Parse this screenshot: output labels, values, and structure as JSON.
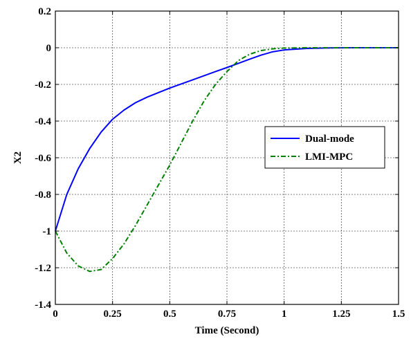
{
  "chart_data": {
    "type": "line",
    "title": "",
    "xlabel": "Time (Second)",
    "ylabel": "X2",
    "xlim": [
      0,
      1.5
    ],
    "ylim": [
      -1.4,
      0.2
    ],
    "xticks": [
      0,
      0.25,
      0.5,
      0.75,
      1,
      1.25,
      1.5
    ],
    "xtick_labels": [
      "0",
      "0.25",
      "0.5",
      "0.75",
      "1",
      "1.25",
      "1.5"
    ],
    "yticks": [
      -1.4,
      -1.2,
      -1,
      -0.8,
      -0.6,
      -0.4,
      -0.2,
      0,
      0.2
    ],
    "ytick_labels": [
      "-1.4",
      "-1.2",
      "-1",
      "-0.8",
      "-0.6",
      "-0.4",
      "-0.2",
      "0",
      "0.2"
    ],
    "grid": true,
    "legend_position": "center-right",
    "series": [
      {
        "name": "Dual-mode",
        "color": "#0000ff",
        "style": "solid",
        "x": [
          0,
          0.05,
          0.1,
          0.15,
          0.2,
          0.25,
          0.3,
          0.35,
          0.4,
          0.5,
          0.6,
          0.7,
          0.75,
          0.8,
          0.85,
          0.9,
          0.95,
          1.0,
          1.1,
          1.2,
          1.3,
          1.4,
          1.5
        ],
        "y": [
          -1.0,
          -0.8,
          -0.66,
          -0.55,
          -0.46,
          -0.39,
          -0.34,
          -0.3,
          -0.27,
          -0.22,
          -0.175,
          -0.13,
          -0.108,
          -0.085,
          -0.062,
          -0.04,
          -0.022,
          -0.012,
          -0.004,
          -0.001,
          0,
          0,
          0
        ]
      },
      {
        "name": "LMI-MPC",
        "color": "#008000",
        "style": "dashdot",
        "x": [
          0,
          0.05,
          0.1,
          0.15,
          0.2,
          0.25,
          0.3,
          0.35,
          0.4,
          0.45,
          0.5,
          0.55,
          0.6,
          0.65,
          0.7,
          0.75,
          0.8,
          0.85,
          0.9,
          0.95,
          1.0,
          1.05,
          1.1,
          1.2,
          1.3,
          1.4,
          1.5
        ],
        "y": [
          -1.0,
          -1.12,
          -1.19,
          -1.22,
          -1.21,
          -1.15,
          -1.07,
          -0.97,
          -0.86,
          -0.75,
          -0.64,
          -0.52,
          -0.4,
          -0.29,
          -0.2,
          -0.13,
          -0.07,
          -0.035,
          -0.015,
          -0.006,
          -0.002,
          -0.001,
          0,
          0,
          0,
          0,
          0
        ]
      }
    ]
  }
}
